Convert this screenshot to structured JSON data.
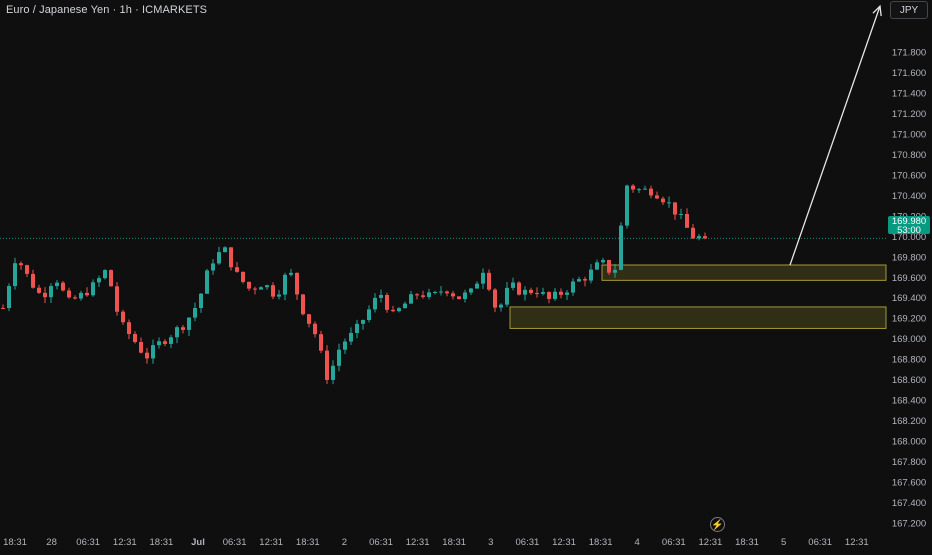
{
  "header": {
    "title": "Euro / Japanese Yen · 1h · ICMARKETS"
  },
  "currency_button": "JPY",
  "current_price": {
    "value": "169.980",
    "countdown": "53:00"
  },
  "colors": {
    "background": "#0f0f0f",
    "up": "#26a69a",
    "down": "#ef5350",
    "zone_border": "#a59a3a",
    "zone_fill": "rgba(125,118,35,0.30)",
    "price_line": "#26a69a",
    "price_tag": "#089981",
    "arrow": "#e6e6e6",
    "axis_text": "#b2b5be"
  },
  "icons": {
    "replay": "lightning-icon"
  },
  "chart_data": {
    "type": "candlestick",
    "title": "Euro / Japanese Yen · 1h · ICMARKETS",
    "ylim": [
      167.13,
      172.31
    ],
    "y_ticks": [
      "171.800",
      "171.600",
      "171.400",
      "171.200",
      "171.000",
      "170.800",
      "170.600",
      "170.400",
      "170.200",
      "170.000",
      "169.800",
      "169.600",
      "169.400",
      "169.200",
      "169.000",
      "168.800",
      "168.600",
      "168.400",
      "168.200",
      "168.000",
      "167.800",
      "167.600",
      "167.400",
      "167.200"
    ],
    "x_tick_labels": [
      "18:31",
      "28",
      "06:31",
      "12:31",
      "18:31",
      "Jul",
      "06:31",
      "12:31",
      "18:31",
      "2",
      "06:31",
      "12:31",
      "18:31",
      "3",
      "06:31",
      "12:31",
      "18:31",
      "4",
      "06:31",
      "12:31",
      "18:31",
      "5",
      "06:31",
      "12:31"
    ],
    "x_tick_bold": [
      "Jul"
    ],
    "grid": false,
    "close_path": [
      169.3,
      169.82,
      169.58,
      169.4,
      169.62,
      169.35,
      169.42,
      169.52,
      169.68,
      169.15,
      169.0,
      168.82,
      168.95,
      169.05,
      169.15,
      169.35,
      169.75,
      169.88,
      169.62,
      169.48,
      169.55,
      169.42,
      169.68,
      169.3,
      169.05,
      168.6,
      168.95,
      169.05,
      169.25,
      169.45,
      169.22,
      169.35,
      169.45,
      169.4,
      169.5,
      169.4,
      169.45,
      169.7,
      169.25,
      169.52,
      169.45,
      169.48,
      169.38,
      169.45,
      169.55,
      169.62,
      169.75,
      169.62,
      170.5,
      170.45,
      170.45,
      170.35,
      170.2,
      170.0,
      169.98
    ],
    "current_price": 169.98,
    "zones": [
      {
        "name": "upper-demand-zone",
        "low": 169.57,
        "high": 169.72
      },
      {
        "name": "lower-demand-zone",
        "low": 169.1,
        "high": 169.31
      }
    ],
    "projection": {
      "from_price": 169.72,
      "to_price": 172.25
    }
  }
}
